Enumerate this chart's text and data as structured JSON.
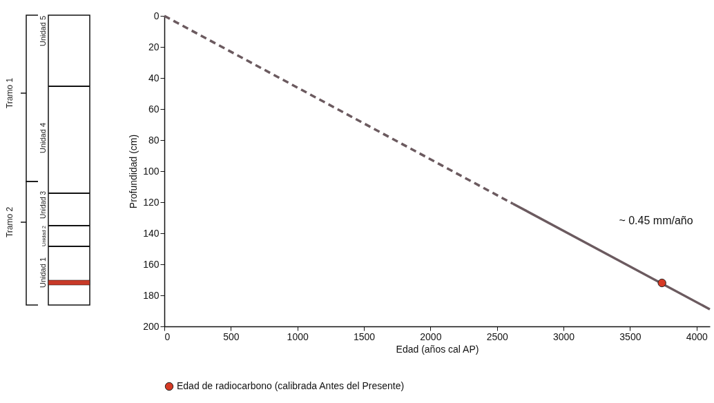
{
  "chart_data": {
    "type": "line",
    "xlabel": "Edad (años cal AP)",
    "ylabel": "Profundidad (cm)",
    "xlim": [
      0,
      4100
    ],
    "ylim": [
      200,
      0
    ],
    "xticks": [
      0,
      500,
      1000,
      1500,
      2000,
      2500,
      3000,
      3500,
      4000
    ],
    "yticks": [
      0,
      20,
      40,
      60,
      80,
      100,
      120,
      140,
      160,
      180,
      200
    ],
    "grid": false,
    "legend": "bottom",
    "series": [
      {
        "color": "#6b5a5f",
        "line_style": "dashed",
        "x": [
          0,
          2620
        ],
        "values": [
          0,
          121
        ]
      },
      {
        "color": "#6b5a5f",
        "line_style": "solid",
        "x": [
          2620,
          4100
        ],
        "values": [
          121,
          189
        ]
      },
      {
        "type": "scatter",
        "name": "Edad de radiocarbono (calibrada Antes del Presente)",
        "color": "#d63a25",
        "marker": "circle",
        "x": [
          3740
        ],
        "values": [
          172
        ]
      }
    ],
    "annotations": [
      "~ 0.45 mm/año",
      "Tramo 1",
      "Tramo 2",
      "Unidad 5",
      "Unidad 4",
      "Unidad 3",
      "Unidad 2",
      "Unidad 1"
    ]
  }
}
